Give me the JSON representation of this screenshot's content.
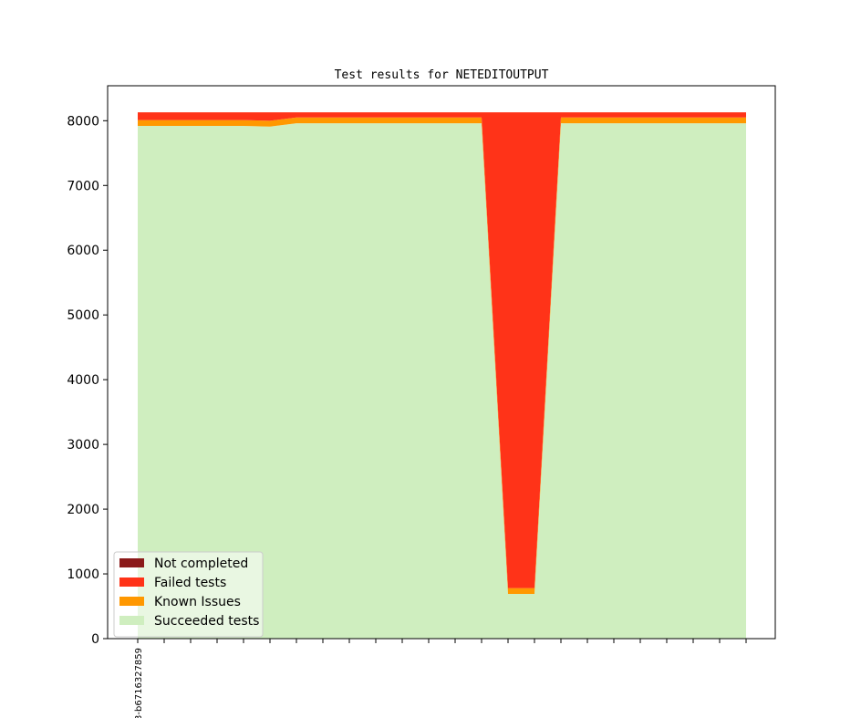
{
  "chart_data": {
    "type": "area",
    "stacked": true,
    "title": "Test results for NETEDITOUTPUT",
    "xlabel": "",
    "ylabel": "",
    "ylim": [
      0,
      8540
    ],
    "yticks": [
      0,
      1000,
      2000,
      3000,
      4000,
      5000,
      6000,
      7000,
      8000
    ],
    "x_tick_count": 24,
    "x_tick_labels": [
      "3-b6716327859"
    ],
    "grid": false,
    "legend_position": "lower-left",
    "series": [
      {
        "name": "Succeeded tests",
        "color": "#cfeebf",
        "values": [
          7920,
          7920,
          7920,
          7920,
          7920,
          7910,
          7960,
          7960,
          7960,
          7960,
          7960,
          7960,
          7960,
          7960,
          690,
          690,
          7960,
          7960,
          7960,
          7960,
          7960,
          7960,
          7960,
          7960
        ]
      },
      {
        "name": "Known Issues",
        "color": "#ff9800",
        "values": [
          90,
          90,
          90,
          90,
          90,
          90,
          90,
          90,
          90,
          90,
          90,
          90,
          90,
          90,
          90,
          90,
          90,
          90,
          90,
          90,
          90,
          90,
          90,
          90
        ]
      },
      {
        "name": "Failed tests",
        "color": "#ff3318",
        "values": [
          120,
          120,
          120,
          120,
          120,
          130,
          80,
          80,
          80,
          80,
          80,
          80,
          80,
          80,
          7350,
          7350,
          80,
          80,
          80,
          80,
          80,
          80,
          80,
          80
        ]
      },
      {
        "name": "Not completed",
        "color": "#8b1a1a",
        "values": [
          0,
          0,
          0,
          0,
          0,
          0,
          0,
          0,
          0,
          0,
          0,
          0,
          0,
          0,
          0,
          0,
          0,
          0,
          0,
          0,
          0,
          0,
          0,
          0
        ]
      }
    ],
    "legend_order": [
      "Not completed",
      "Failed tests",
      "Known Issues",
      "Succeeded tests"
    ]
  }
}
